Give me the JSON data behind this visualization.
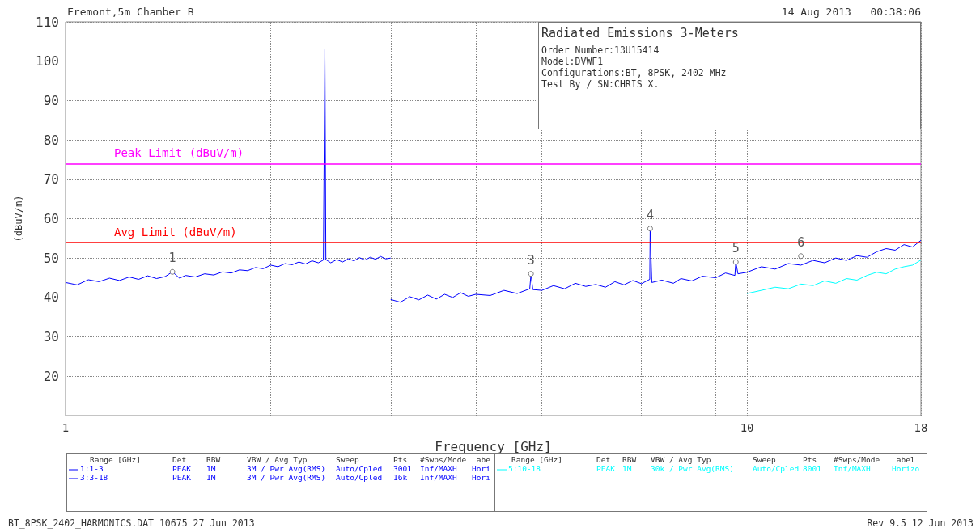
{
  "chart_data": {
    "type": "line",
    "title": "Radiated Emissions 3-Meters",
    "xlabel": "Frequency [GHz]",
    "ylabel": "(dBuV/m)",
    "log": "x",
    "grid": true,
    "legend": "bottom",
    "marker": "none",
    "line_style": "solid",
    "xlim": [
      1,
      18
    ],
    "xticks": [
      1,
      {
        "value": 2,
        "label": null
      },
      {
        "value": 3,
        "label": null
      },
      {
        "value": 4,
        "label": null
      },
      {
        "value": 5,
        "label": null
      },
      {
        "value": 6,
        "label": null
      },
      {
        "value": 7,
        "label": null
      },
      {
        "value": 8,
        "label": null
      },
      {
        "value": 9,
        "label": null
      },
      10,
      18
    ],
    "ylim": [
      10,
      110
    ],
    "yticks": [
      20,
      30,
      40,
      50,
      60,
      70,
      80,
      90,
      100,
      110
    ],
    "ref_lines": [
      {
        "axis": "y",
        "value": 74,
        "label": "Peak Limit (dBuV/m)",
        "color": "#ff00ff"
      },
      {
        "axis": "y",
        "value": 54,
        "label": "Avg Limit (dBuV/m)",
        "color": "#ff0000"
      }
    ],
    "series": [
      {
        "name": "1:1-3",
        "color": "#0000ff",
        "x": [
          1,
          1.04,
          1.08,
          1.12,
          1.16,
          1.2,
          1.24,
          1.28,
          1.32,
          1.36,
          1.4,
          1.435,
          1.47,
          1.5,
          1.55,
          1.6,
          1.65,
          1.7,
          1.75,
          1.8,
          1.85,
          1.9,
          1.95,
          2,
          2.05,
          2.1,
          2.15,
          2.2,
          2.25,
          2.3,
          2.35,
          2.39,
          2.402,
          2.41,
          2.45,
          2.5,
          2.55,
          2.6,
          2.65,
          2.7,
          2.75,
          2.8,
          2.85,
          2.9,
          2.95,
          3
        ],
        "values": [
          43.8,
          43.2,
          44.5,
          44.0,
          44.9,
          44.3,
          45.2,
          44.6,
          45.5,
          44.8,
          45.3,
          46.5,
          44.9,
          45.6,
          45.2,
          46.0,
          45.7,
          46.5,
          46.2,
          47.0,
          46.8,
          47.6,
          47.3,
          48.2,
          47.8,
          48.6,
          48.3,
          49.0,
          48.5,
          49.3,
          48.8,
          49.5,
          103,
          49.6,
          48.8,
          49.6,
          49.0,
          49.8,
          49.3,
          50.1,
          49.5,
          50.2,
          49.7,
          50.4,
          49.8,
          50.0
        ]
      },
      {
        "name": "3:3-18",
        "color": "#0000ff",
        "x": [
          3,
          3.1,
          3.2,
          3.3,
          3.4,
          3.5,
          3.6,
          3.7,
          3.8,
          3.9,
          4,
          4.2,
          4.4,
          4.6,
          4.8,
          4.82,
          4.85,
          5,
          5.2,
          5.4,
          5.6,
          5.8,
          6,
          6.2,
          6.4,
          6.6,
          6.8,
          7,
          7.2,
          7.21,
          7.25,
          7.5,
          7.8,
          8,
          8.3,
          8.6,
          9,
          9.3,
          9.6,
          9.63,
          9.7,
          10,
          10.5,
          11,
          11.5,
          12,
          12.5,
          13,
          13.5,
          14,
          14.5,
          15,
          15.5,
          16,
          16.5,
          17,
          17.5,
          18
        ],
        "values": [
          39.5,
          38.8,
          40.2,
          39.4,
          40.6,
          39.6,
          40.8,
          40.0,
          41.2,
          40.3,
          40.8,
          40.5,
          41.8,
          41.0,
          42.2,
          46,
          42.0,
          41.8,
          43.0,
          42.2,
          43.6,
          42.8,
          43.3,
          42.6,
          44.0,
          43.2,
          44.3,
          43.5,
          44.6,
          57.5,
          43.8,
          44.4,
          43.6,
          44.8,
          44.2,
          45.4,
          45.0,
          46.2,
          45.6,
          49,
          46.0,
          46.4,
          47.8,
          47.2,
          48.6,
          48.2,
          49.4,
          48.8,
          50.0,
          49.4,
          50.6,
          50.2,
          51.6,
          52.4,
          52.0,
          53.4,
          52.8,
          54.5
        ]
      },
      {
        "name": "5:10-18",
        "color": "#00ffff",
        "x": [
          10,
          10.5,
          11,
          11.5,
          12,
          12.5,
          13,
          13.5,
          14,
          14.5,
          15,
          15.5,
          16,
          16.5,
          17,
          17.5,
          18
        ],
        "values": [
          41.0,
          41.8,
          42.6,
          42.2,
          43.4,
          43.0,
          44.2,
          43.6,
          44.8,
          44.4,
          45.6,
          46.4,
          46.0,
          47.2,
          47.8,
          48.2,
          49.5
        ]
      }
    ],
    "annotations": [
      "Fremont,5m Chamber B",
      "14 Aug 2013   00:38:06",
      "Order Number:13U15414",
      "Model:DVWF1",
      "Configurations:BT, 8PSK, 2402 MHz",
      "Test By / SN:CHRIS X.",
      "BT_8PSK_2402_HARMONICS.DAT 10675 27 Jun 2013",
      "Rev 9.5 12 Jun 2013",
      "Range [GHz]",
      "Det",
      "RBW",
      "VBW / Avg Typ",
      "Sweep",
      "Pts",
      "#Swps/Mode",
      "Labe",
      "Range [GHz]",
      "Det",
      "RBW",
      "VBW / Avg Typ",
      "Sweep",
      "Pts",
      "#Swps/Mode",
      "Label",
      "PEAK",
      "1M",
      "3M / Pwr Avg(RMS)",
      "Auto/Cpled",
      "3001",
      "Inf/MAXH",
      "Hori",
      "PEAK",
      "1M",
      "3M / Pwr Avg(RMS)",
      "Auto/Cpled",
      "16k",
      "Inf/MAXH",
      "Hori",
      "PEAK",
      "1M",
      "30k / Pwr Avg(RMS)",
      "Auto/Cpled",
      "8001",
      "Inf/MAXH",
      "Horizo",
      {
        "text": "1",
        "x": 1.435,
        "y": 46.5
      },
      {
        "text": "3",
        "x": 4.82,
        "y": 46
      },
      {
        "text": "4",
        "x": 7.21,
        "y": 57.5
      },
      {
        "text": "5",
        "x": 9.63,
        "y": 49
      },
      {
        "text": "6",
        "x": 12.0,
        "y": 50.5
      }
    ]
  }
}
